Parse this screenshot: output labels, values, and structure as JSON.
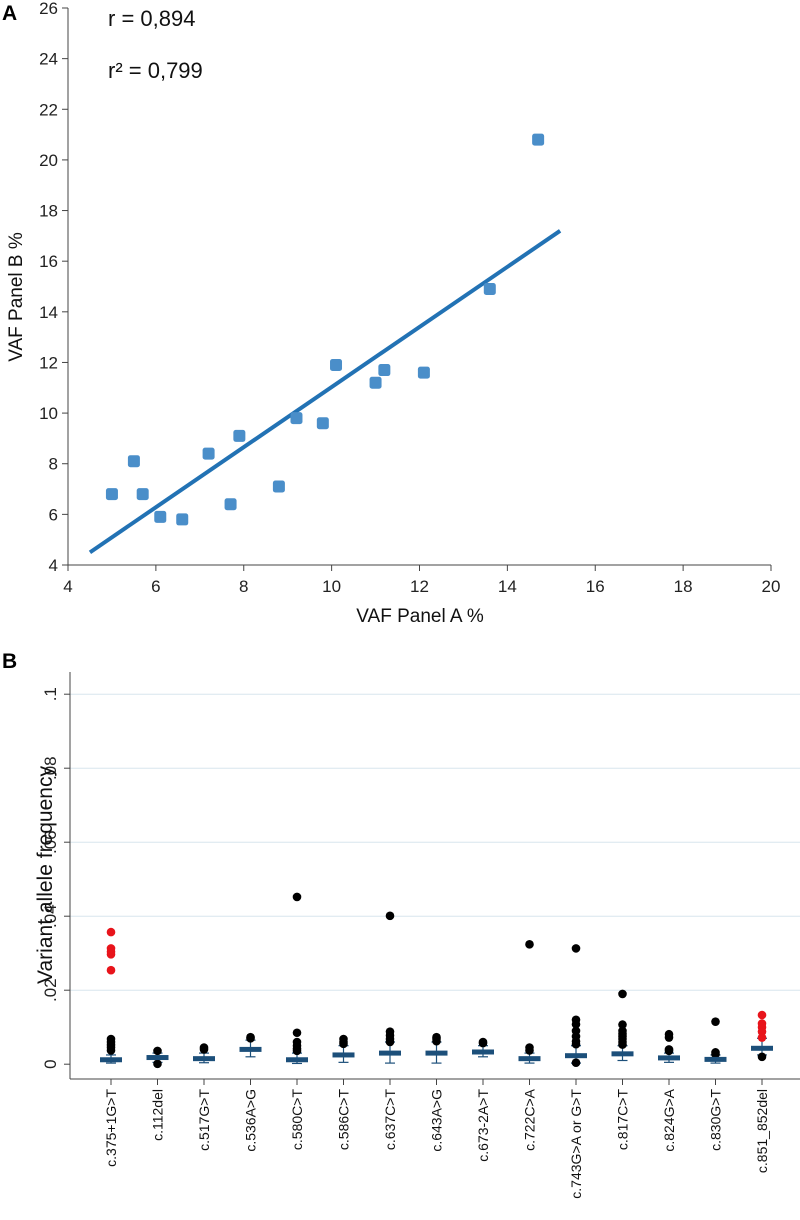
{
  "chart_data": [
    {
      "panel": "A",
      "type": "scatter",
      "xlabel": "VAF Panel A %",
      "ylabel": "VAF Panel B %",
      "xlim": [
        4,
        20
      ],
      "ylim": [
        4,
        26
      ],
      "xticks": [
        4,
        6,
        8,
        10,
        12,
        14,
        16,
        18,
        20
      ],
      "yticks": [
        4,
        6,
        8,
        10,
        12,
        14,
        16,
        18,
        20,
        22,
        24,
        26
      ],
      "annotations": [
        "r = 0,894",
        "r² = 0,799"
      ],
      "points": {
        "x": [
          5.0,
          5.5,
          5.7,
          6.1,
          6.6,
          7.2,
          7.7,
          7.9,
          8.8,
          9.2,
          9.8,
          10.1,
          11.0,
          11.2,
          12.1,
          13.6,
          14.7
        ],
        "y": [
          6.8,
          8.1,
          6.8,
          5.9,
          5.8,
          8.4,
          6.4,
          9.1,
          7.1,
          9.8,
          9.6,
          11.9,
          11.2,
          11.7,
          11.6,
          14.9,
          20.8
        ]
      },
      "fit_line": {
        "x": [
          4.5,
          15.2
        ],
        "y": [
          4.5,
          17.2
        ]
      },
      "colors": {
        "points": "#4a8ec9",
        "line": "#2272b4"
      }
    },
    {
      "panel": "B",
      "type": "scatter",
      "ylabel": "Variant allele frequency",
      "ylim": [
        -0.004,
        0.106
      ],
      "yticks": [
        0,
        0.02,
        0.04,
        0.06,
        0.08,
        0.1
      ],
      "ytick_labels": [
        "0",
        ".02",
        ".04",
        ".06",
        ".08",
        ".1"
      ],
      "categories": [
        "c.375+1G>T",
        "c.112del",
        "c.517G>T",
        "c.536A>G",
        "c.580C>T",
        "c.586C>T",
        "c.637C>T",
        "c.643A>G",
        "c.673-2A>T",
        "c.722C>A",
        "c.743G>A or G>T",
        "c.817C>T",
        "c.824G>A",
        "c.830G>T",
        "c.851_852del"
      ],
      "medians": [
        0.0012,
        0.0018,
        0.0015,
        0.004,
        0.0012,
        0.0025,
        0.003,
        0.003,
        0.0033,
        0.0015,
        0.0023,
        0.0028,
        0.0017,
        0.0013,
        0.0043
      ],
      "whisker_low": [
        0.0003,
        0.0005,
        0.0004,
        0.002,
        0.0002,
        0.0005,
        0.0003,
        0.0003,
        0.002,
        0.0003,
        0.0003,
        0.001,
        0.0005,
        0.0003,
        0.0025
      ],
      "whisker_high": [
        0.0025,
        0.003,
        0.003,
        0.0065,
        0.003,
        0.005,
        0.006,
        0.006,
        0.005,
        0.003,
        0.005,
        0.005,
        0.003,
        0.0025,
        0.007
      ],
      "outliers": [
        [
          0.0037,
          0.0045,
          0.0052,
          0.006,
          0.0068
        ],
        [
          0.0036,
          0.0001
        ],
        [
          0.004,
          0.0045
        ],
        [
          0.007,
          0.0073
        ],
        [
          0.0452,
          0.0085,
          0.006,
          0.005,
          0.0042,
          0.0036
        ],
        [
          0.0055,
          0.006,
          0.0068
        ],
        [
          0.0401,
          0.0088,
          0.0078,
          0.0068,
          0.006
        ],
        [
          0.0062,
          0.0068,
          0.0073
        ],
        [
          0.0057,
          0.006
        ],
        [
          0.0324,
          0.0045,
          0.0037
        ],
        [
          0.0313,
          0.012,
          0.0108,
          0.009,
          0.0075,
          0.0062,
          0.0054,
          0.0004
        ],
        [
          0.019,
          0.0107,
          0.009,
          0.0082,
          0.0075,
          0.0068,
          0.006,
          0.0053
        ],
        [
          0.0081,
          0.0072,
          0.004,
          0.0036
        ],
        [
          0.0115,
          0.0032,
          0.0027
        ],
        [
          0.002
        ]
      ],
      "highlight": [
        [
          0.0357,
          0.0313,
          0.0304,
          0.0297,
          0.0254
        ],
        [],
        [],
        [],
        [],
        [],
        [],
        [],
        [],
        [],
        [],
        [],
        [],
        [],
        [
          0.0133,
          0.011,
          0.01,
          0.0088,
          0.0072
        ]
      ],
      "colors": {
        "outlier": "#000000",
        "highlight": "#e8141b",
        "box": "#1c4f7a",
        "grid": "#d8e6ee"
      }
    }
  ]
}
